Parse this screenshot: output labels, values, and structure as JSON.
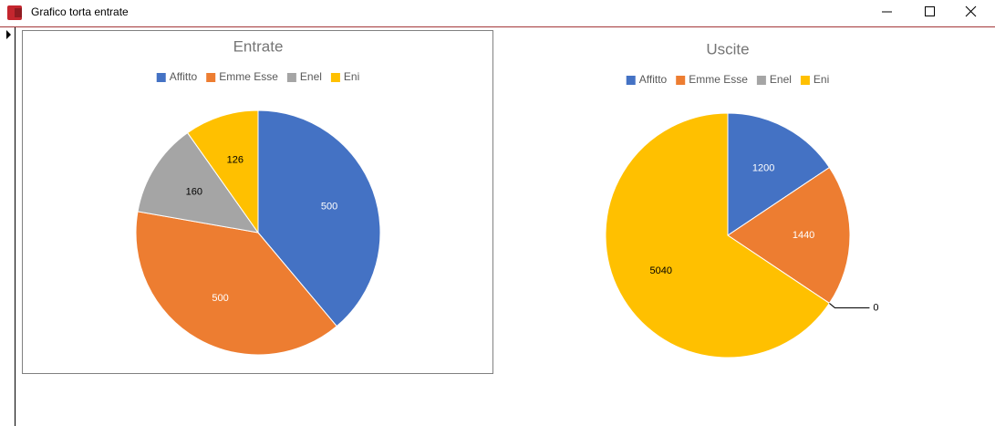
{
  "window": {
    "title": "Grafico torta entrate"
  },
  "chart_data": [
    {
      "type": "pie",
      "title": "Entrate",
      "categories": [
        "Affitto",
        "Emme Esse",
        "Enel",
        "Eni"
      ],
      "values": [
        500,
        500,
        160,
        126
      ],
      "colors": [
        "#4472c4",
        "#ed7d31",
        "#a5a5a5",
        "#ffc000"
      ]
    },
    {
      "type": "pie",
      "title": "Uscite",
      "categories": [
        "Affitto",
        "Emme Esse",
        "Enel",
        "Eni"
      ],
      "values": [
        1200,
        1440,
        0,
        5040
      ],
      "colors": [
        "#4472c4",
        "#ed7d31",
        "#a5a5a5",
        "#ffc000"
      ]
    }
  ]
}
